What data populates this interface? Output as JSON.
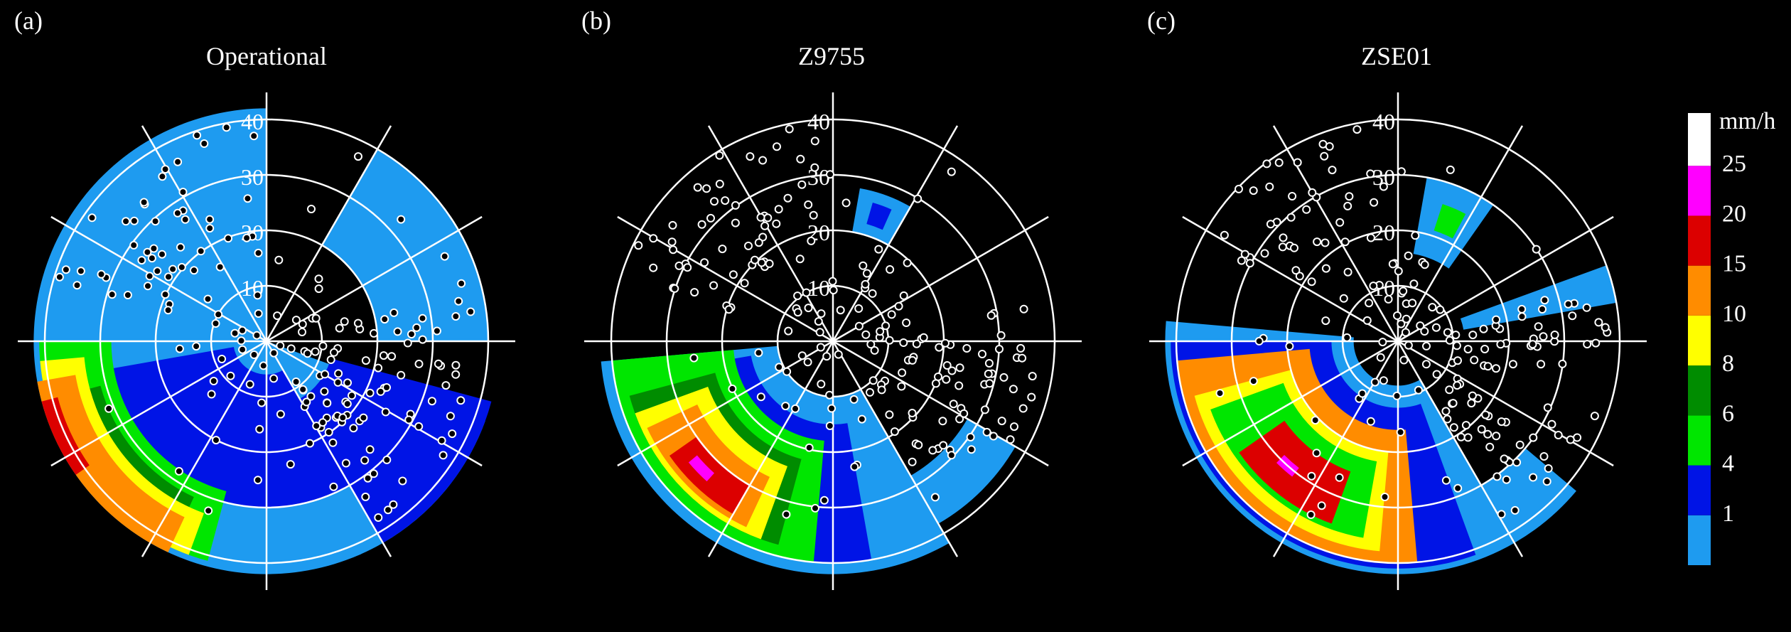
{
  "colors": {
    "background": "#000000",
    "rings": "#ffffff",
    "gauge_fill": "#000000",
    "gauge_stroke": "#ffffff"
  },
  "chart_data": {
    "type": "heatmap",
    "polar": true,
    "range_rings": [
      10,
      20,
      30,
      40
    ],
    "radial_spokes_deg": [
      0,
      30,
      60,
      90,
      120,
      150,
      180,
      210,
      240,
      270,
      300,
      330
    ],
    "colorbar": {
      "unit": "mm/h",
      "levels": [
        {
          "label": "",
          "color": "#1e9bf0"
        },
        {
          "label": "1",
          "color": "#0014e6"
        },
        {
          "label": "4",
          "color": "#00e600"
        },
        {
          "label": "6",
          "color": "#008c00"
        },
        {
          "label": "8",
          "color": "#ffff00"
        },
        {
          "label": "10",
          "color": "#ff8c00"
        },
        {
          "label": "15",
          "color": "#dc0000"
        },
        {
          "label": "20",
          "color": "#ff00ff"
        },
        {
          "label": "25",
          "color": "#ffffff"
        }
      ]
    },
    "panels": [
      {
        "id": "a",
        "label": "(a)",
        "title": "Operational",
        "rain_regions": [
          {
            "level": 0,
            "r0": 0,
            "r1": 42,
            "a0": 90,
            "a1": 300
          },
          {
            "level": 0,
            "r0": 0,
            "r1": 42,
            "a0": 300,
            "a1": 340
          },
          {
            "level": 1,
            "r0": 12,
            "r1": 42,
            "a0": 300,
            "a1": 345
          },
          {
            "level": 1,
            "r0": 6,
            "r1": 30,
            "a0": 190,
            "a1": 300
          },
          {
            "level": 0,
            "r0": 20,
            "r1": 40,
            "a0": 0,
            "a1": 60
          },
          {
            "level": 2,
            "r0": 28,
            "r1": 41,
            "a0": 180,
            "a1": 255
          },
          {
            "level": 3,
            "r0": 31,
            "r1": 40,
            "a0": 195,
            "a1": 245
          },
          {
            "level": 4,
            "r0": 33,
            "r1": 41,
            "a0": 185,
            "a1": 250
          },
          {
            "level": 5,
            "r0": 35,
            "r1": 42,
            "a0": 190,
            "a1": 245
          },
          {
            "level": 6,
            "r0": 39,
            "r1": 42,
            "a0": 195,
            "a1": 215
          }
        ]
      },
      {
        "id": "b",
        "label": "(b)",
        "title": "Z9755",
        "rain_regions": [
          {
            "level": 0,
            "r0": 10,
            "r1": 42,
            "a0": 185,
            "a1": 300
          },
          {
            "level": 1,
            "r0": 15,
            "r1": 40,
            "a0": 190,
            "a1": 280
          },
          {
            "level": 2,
            "r0": 18,
            "r1": 40,
            "a0": 185,
            "a1": 265
          },
          {
            "level": 3,
            "r0": 22,
            "r1": 38,
            "a0": 195,
            "a1": 255
          },
          {
            "level": 4,
            "r0": 24,
            "r1": 38,
            "a0": 200,
            "a1": 250
          },
          {
            "level": 5,
            "r0": 27,
            "r1": 37,
            "a0": 205,
            "a1": 245
          },
          {
            "level": 6,
            "r0": 30,
            "r1": 36,
            "a0": 215,
            "a1": 240
          },
          {
            "level": 7,
            "r0": 32,
            "r1": 34,
            "a0": 220,
            "a1": 228
          },
          {
            "level": 0,
            "r0": 20,
            "r1": 28,
            "a0": 60,
            "a1": 80
          },
          {
            "level": 1,
            "r0": 22,
            "r1": 26,
            "a0": 66,
            "a1": 74
          },
          {
            "level": 0,
            "r0": 28,
            "r1": 38,
            "a0": 300,
            "a1": 330
          }
        ]
      },
      {
        "id": "c",
        "label": "(c)",
        "title": "ZSE01",
        "rain_regions": [
          {
            "level": 0,
            "r0": 8,
            "r1": 42,
            "a0": 175,
            "a1": 300
          },
          {
            "level": 1,
            "r0": 12,
            "r1": 41,
            "a0": 180,
            "a1": 290
          },
          {
            "level": 5,
            "r0": 16,
            "r1": 40,
            "a0": 185,
            "a1": 275
          },
          {
            "level": 4,
            "r0": 20,
            "r1": 38,
            "a0": 195,
            "a1": 265
          },
          {
            "level": 2,
            "r0": 22,
            "r1": 36,
            "a0": 200,
            "a1": 260
          },
          {
            "level": 6,
            "r0": 25,
            "r1": 35,
            "a0": 215,
            "a1": 250
          },
          {
            "level": 7,
            "r0": 29,
            "r1": 31,
            "a0": 225,
            "a1": 232
          },
          {
            "level": 0,
            "r0": 16,
            "r1": 30,
            "a0": 55,
            "a1": 80
          },
          {
            "level": 2,
            "r0": 21,
            "r1": 26,
            "a0": 62,
            "a1": 72
          },
          {
            "level": 0,
            "r0": 12,
            "r1": 40,
            "a0": 10,
            "a1": 20
          },
          {
            "level": 0,
            "r0": 30,
            "r1": 42,
            "a0": 300,
            "a1": 320
          }
        ]
      }
    ]
  }
}
